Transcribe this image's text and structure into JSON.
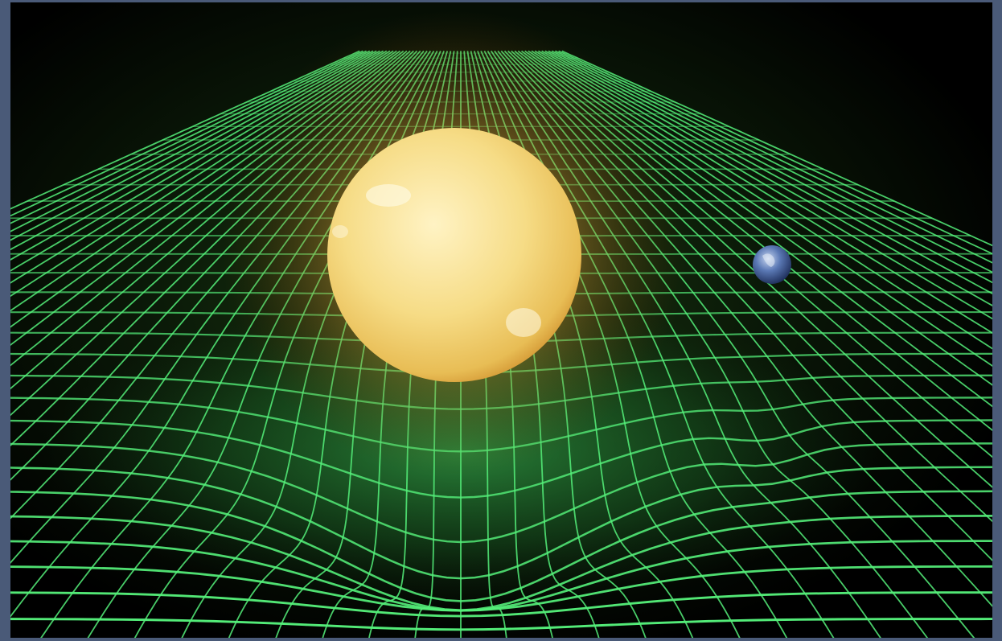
{
  "scene": {
    "background_color": "#000000",
    "border_color": "#4a5a78",
    "grid_color": "#55f07a",
    "sun_color": "#f6dc86",
    "planet_color": "#5a78b4",
    "objects": [
      "sun-icon",
      "earth-icon",
      "spacetime-grid"
    ]
  }
}
